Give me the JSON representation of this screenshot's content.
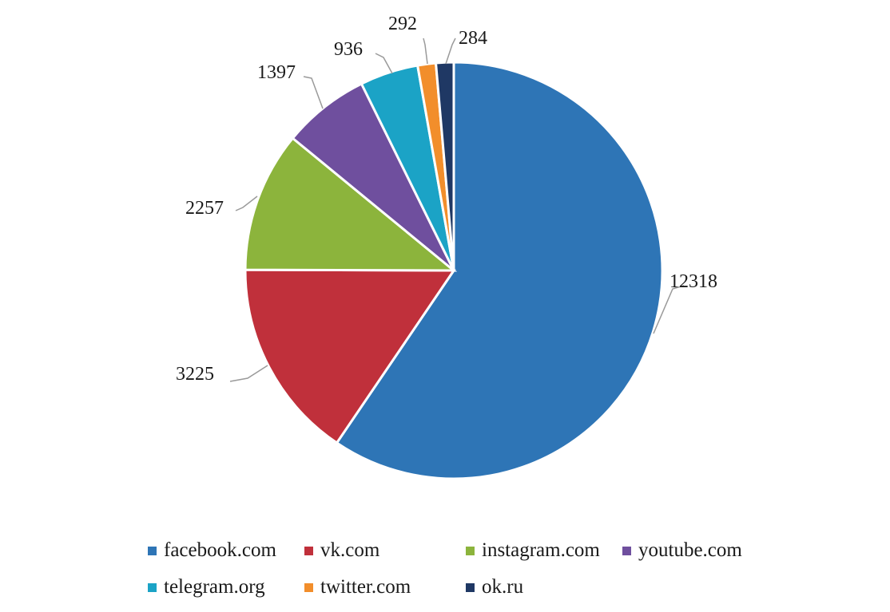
{
  "chart_data": {
    "type": "pie",
    "categories": [
      "facebook.com",
      "vk.com",
      "instagram.com",
      "youtube.com",
      "telegram.org",
      "twitter.com",
      "ok.ru"
    ],
    "values": [
      12318,
      3225,
      2257,
      1397,
      936,
      292,
      284
    ],
    "colors": [
      "#2E75B6",
      "#C0303B",
      "#8CB43C",
      "#6F4F9E",
      "#1BA3C6",
      "#F28E2B",
      "#1F3864"
    ],
    "title": "",
    "legend_position": "bottom"
  }
}
